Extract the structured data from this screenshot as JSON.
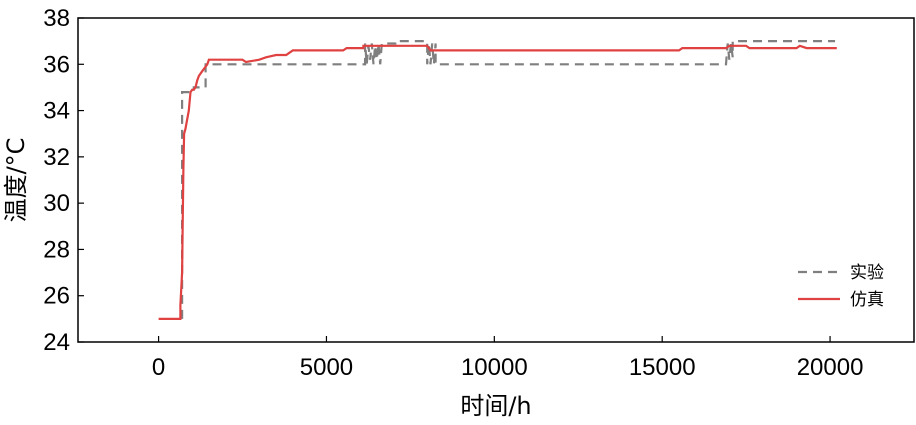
{
  "chart_data": {
    "type": "line",
    "xlabel": "时间/h",
    "ylabel": "温度/°C",
    "xlim": [
      -2400,
      22500
    ],
    "ylim": [
      24,
      38
    ],
    "xticks": [
      0,
      5000,
      10000,
      15000,
      20000
    ],
    "yticks": [
      24,
      26,
      28,
      30,
      32,
      34,
      36,
      38
    ],
    "grid": false,
    "legend": {
      "position": "lower-right",
      "entries": [
        "实验",
        "仿真"
      ]
    },
    "series": [
      {
        "name": "实验",
        "style": "dashed",
        "color": "#7f7f7f",
        "x": [
          700,
          700,
          1050,
          1050,
          1400,
          1400,
          2500,
          2500,
          6150,
          6150,
          6200,
          6250,
          6300,
          6350,
          6400,
          6450,
          6500,
          6550,
          6600,
          6650,
          7000,
          7050,
          7050,
          7500,
          7500,
          8000,
          8000,
          8050,
          8100,
          8150,
          8200,
          8250,
          8250,
          15000,
          16900,
          16950,
          17000,
          17050,
          17100,
          17100,
          17800,
          20150
        ],
        "y": [
          25.0,
          34.8,
          34.8,
          35.0,
          35.0,
          36.0,
          36.0,
          36.0,
          36.0,
          36.9,
          36.0,
          36.8,
          36.2,
          36.9,
          36.0,
          36.8,
          36.2,
          36.9,
          36.0,
          36.9,
          36.9,
          36.9,
          37.0,
          37.0,
          37.0,
          37.0,
          36.0,
          36.9,
          36.0,
          36.9,
          36.0,
          36.9,
          36.0,
          36.0,
          36.0,
          36.9,
          36.2,
          36.9,
          36.3,
          37.0,
          37.0,
          37.0
        ]
      },
      {
        "name": "仿真",
        "style": "solid",
        "color": "#e04141",
        "x": [
          0,
          650,
          650,
          700,
          720,
          740,
          760,
          800,
          850,
          900,
          950,
          1000,
          1050,
          1100,
          1150,
          1200,
          1300,
          1400,
          1450,
          1500,
          2500,
          2600,
          3000,
          3200,
          3500,
          3800,
          3900,
          4000,
          4800,
          5500,
          5600,
          6000,
          6100,
          6100,
          6800,
          7500,
          7600,
          8000,
          8050,
          8100,
          8200,
          8300,
          15500,
          15600,
          16500,
          16900,
          17000,
          17500,
          17600,
          19000,
          19100,
          19300,
          20200
        ],
        "y": [
          25.0,
          25.0,
          25.6,
          27.0,
          29.5,
          31.5,
          33.0,
          33.2,
          33.6,
          34.0,
          34.8,
          34.9,
          34.9,
          35.0,
          35.3,
          35.5,
          35.7,
          35.9,
          36.0,
          36.2,
          36.2,
          36.1,
          36.2,
          36.3,
          36.4,
          36.4,
          36.5,
          36.6,
          36.6,
          36.6,
          36.7,
          36.7,
          36.7,
          36.8,
          36.8,
          36.8,
          36.8,
          36.8,
          36.7,
          36.6,
          36.6,
          36.6,
          36.6,
          36.7,
          36.7,
          36.7,
          36.8,
          36.8,
          36.7,
          36.7,
          36.8,
          36.7,
          36.7
        ]
      }
    ]
  }
}
